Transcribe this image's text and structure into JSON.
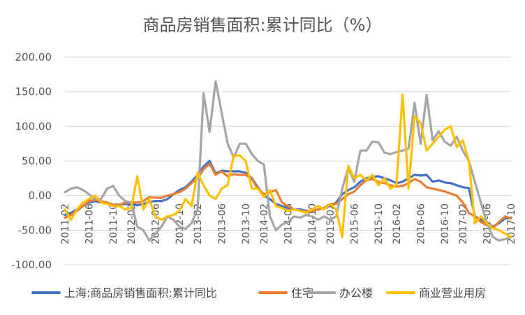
{
  "chart_data": {
    "type": "line",
    "title": "商品房销售面积:累计同比（%）",
    "ylim": [
      -100,
      200
    ],
    "yticks": [
      "200.00",
      "150.00",
      "100.00",
      "50.00",
      "0.00",
      "-50.00",
      "-100.00"
    ],
    "ytick_values": [
      200,
      150,
      100,
      50,
      0,
      -50,
      -100
    ],
    "grid": true,
    "legend_position": "bottom",
    "x": [
      "2011-02",
      "2011-03",
      "2011-04",
      "2011-05",
      "2011-06",
      "2011-07",
      "2011-08",
      "2011-09",
      "2011-10",
      "2011-11",
      "2011-12",
      "2012-02",
      "2012-03",
      "2012-04",
      "2012-05",
      "2012-06",
      "2012-07",
      "2012-08",
      "2012-09",
      "2012-10",
      "2012-11",
      "2012-12",
      "2013-02",
      "2013-03",
      "2013-04",
      "2013-05",
      "2013-06",
      "2013-07",
      "2013-08",
      "2013-09",
      "2013-10",
      "2013-11",
      "2013-12",
      "2014-02",
      "2014-03",
      "2014-04",
      "2014-05",
      "2014-06",
      "2014-07",
      "2014-08",
      "2014-09",
      "2014-10",
      "2014-11",
      "2014-12",
      "2015-02",
      "2015-03",
      "2015-04",
      "2015-05",
      "2015-06",
      "2015-07",
      "2015-08",
      "2015-09",
      "2015-10",
      "2015-11",
      "2015-12",
      "2016-02",
      "2016-03",
      "2016-04",
      "2016-05",
      "2016-06",
      "2016-07",
      "2016-08",
      "2016-09",
      "2016-10",
      "2016-11",
      "2016-12",
      "2017-02",
      "2017-03",
      "2017-04",
      "2017-05",
      "2017-06",
      "2017-07",
      "2017-08",
      "2017-09",
      "2017-10"
    ],
    "x_tick_labels": [
      "2011-02",
      "2011-06",
      "2011-10",
      "2012-02",
      "2012-06",
      "2012-10",
      "2013-02",
      "2013-06",
      "2013-10",
      "2014-02",
      "2014-06",
      "2014-10",
      "2015-02",
      "2015-06",
      "2015-10",
      "2016-02",
      "2016-06",
      "2016-10",
      "2017-02",
      "2017-06",
      "2017-10"
    ],
    "series": [
      {
        "name": "上海:商品房销售面积:累计同比",
        "color": "#4472C4",
        "values": [
          -28,
          -25,
          -20,
          -15,
          -10,
          -8,
          -10,
          -12,
          -13,
          -13,
          -12,
          -12,
          -14,
          -12,
          -9,
          -8,
          -8,
          -5,
          2,
          8,
          12,
          20,
          30,
          42,
          50,
          32,
          36,
          35,
          35,
          35,
          33,
          25,
          12,
          0,
          -5,
          -12,
          -15,
          -18,
          -20,
          -20,
          -22,
          -22,
          -20,
          -18,
          -15,
          -10,
          2,
          8,
          12,
          20,
          25,
          27,
          28,
          25,
          22,
          18,
          20,
          25,
          30,
          29,
          30,
          20,
          22,
          19,
          18,
          15,
          12,
          11,
          -30,
          -35,
          -40,
          -45,
          -40,
          -33,
          -32
        ]
      },
      {
        "name": "住宅",
        "color": "#ED7D31",
        "values": [
          -32,
          -28,
          -22,
          -15,
          -8,
          -6,
          -8,
          -10,
          -13,
          -14,
          -10,
          -10,
          -10,
          -8,
          -2,
          -3,
          -3,
          0,
          2,
          5,
          10,
          18,
          25,
          38,
          46,
          30,
          35,
          28,
          31,
          30,
          30,
          24,
          10,
          2,
          5,
          8,
          -10,
          -15,
          -20,
          -22,
          -23,
          -22,
          -20,
          -18,
          -12,
          -12,
          -5,
          2,
          6,
          15,
          22,
          24,
          20,
          18,
          15,
          13,
          14,
          18,
          24,
          20,
          12,
          10,
          8,
          6,
          3,
          0,
          -10,
          -25,
          -30,
          -38,
          -43,
          -47,
          -38,
          -30,
          -33
        ]
      },
      {
        "name": "办公楼",
        "color": "#A5A5A5",
        "values": [
          5,
          10,
          12,
          8,
          2,
          -5,
          -5,
          10,
          14,
          0,
          -8,
          -10,
          -45,
          -50,
          -65,
          -55,
          -45,
          -30,
          -35,
          -45,
          -48,
          -40,
          -20,
          148,
          92,
          165,
          120,
          75,
          55,
          75,
          75,
          60,
          50,
          45,
          -30,
          -50,
          -42,
          -38,
          -30,
          -32,
          -28,
          -30,
          -35,
          -30,
          -35,
          -30,
          10,
          40,
          20,
          65,
          65,
          78,
          77,
          62,
          60,
          63,
          65,
          68,
          134,
          75,
          145,
          80,
          93,
          78,
          72,
          85,
          65,
          50,
          20,
          -10,
          -40,
          -60,
          -65,
          -63,
          -60
        ]
      },
      {
        "name": "商业营业用房",
        "color": "#FFC000",
        "values": [
          -20,
          -35,
          -20,
          -10,
          -5,
          0,
          -10,
          -12,
          -15,
          -15,
          -20,
          -18,
          28,
          -20,
          -5,
          -30,
          -35,
          -30,
          -28,
          -22,
          -5,
          -15,
          33,
          15,
          0,
          -5,
          10,
          15,
          58,
          58,
          50,
          10,
          10,
          -2,
          8,
          -15,
          -18,
          -22,
          -20,
          -22,
          -25,
          -20,
          -15,
          -20,
          -12,
          -20,
          -60,
          43,
          25,
          30,
          22,
          30,
          15,
          25,
          10,
          15,
          146,
          10,
          115,
          105,
          65,
          75,
          85,
          95,
          100,
          70,
          80,
          50,
          -40,
          -30,
          -40,
          -47,
          -50,
          -55,
          -60
        ]
      }
    ]
  }
}
